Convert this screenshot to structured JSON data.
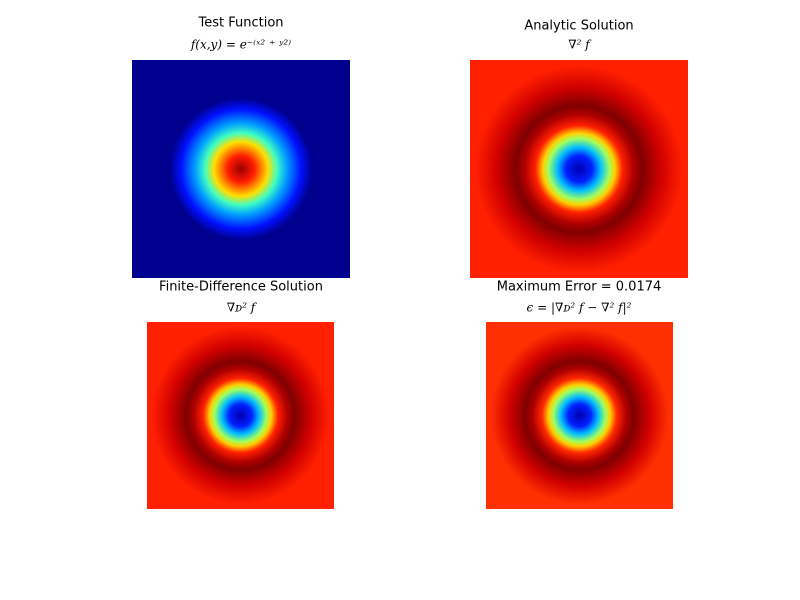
{
  "chart_data": [
    {
      "type": "image",
      "title": "Test Function",
      "subtitle": "f(x,y) = e⁻⁽ˣ² ⁺ ʸ²⁾",
      "colors": [
        "#990000",
        "#ff1a00",
        "#ffe000",
        "#40ffc0",
        "#00a0ff",
        "#0010ff",
        "#00008f",
        "#00008f"
      ]
    },
    {
      "type": "image",
      "title": "Analytic Solution",
      "subtitle": "∇² f",
      "colors": [
        "#0000b0",
        "#0020ff",
        "#00c0ff",
        "#a0ff60",
        "#ffd000",
        "#ff2000",
        "#b00000",
        "#800000",
        "#d00000",
        "#ff2000",
        "#ff2000"
      ]
    },
    {
      "type": "image",
      "title": "Finite-Difference Solution",
      "subtitle": "∇ᴅ² f",
      "colors": [
        "#0000b0",
        "#0020ff",
        "#00c0ff",
        "#a0ff60",
        "#ffd000",
        "#ff2000",
        "#b00000",
        "#800000",
        "#d00000",
        "#ff2000",
        "#ff2000"
      ]
    },
    {
      "type": "image",
      "title": "Maximum Error = 0.0174",
      "subtitle": "ϵ = |∇ᴅ² f − ∇² f|²",
      "colors": [
        "#0000b0",
        "#0020ff",
        "#00c0ff",
        "#a0ff60",
        "#ffd000",
        "#ff2800",
        "#b00000",
        "#800000",
        "#d00000",
        "#ff3000",
        "#ff3000"
      ]
    }
  ]
}
